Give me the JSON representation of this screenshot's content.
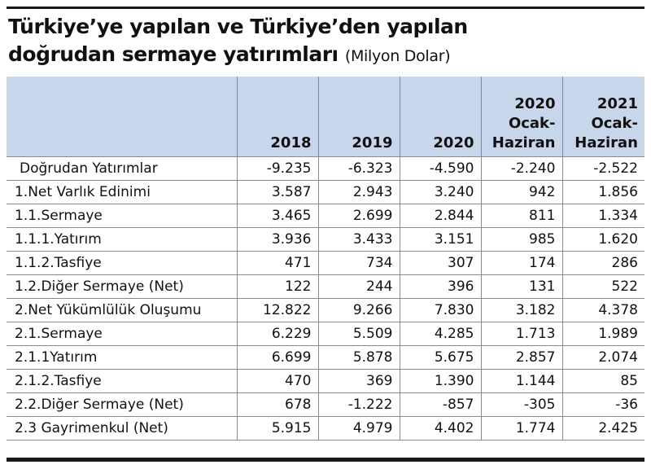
{
  "title": {
    "line1": "Türkiye’ye yapılan ve Türkiye’den yapılan",
    "line2": "doğrudan sermaye yatırımları",
    "unit": "(Milyon Dolar)"
  },
  "table": {
    "headers": [
      {
        "l1": "",
        "l2": "",
        "l3": ""
      },
      {
        "l1": "",
        "l2": "",
        "l3": "2018"
      },
      {
        "l1": "",
        "l2": "",
        "l3": "2019"
      },
      {
        "l1": "",
        "l2": "",
        "l3": "2020"
      },
      {
        "l1": "2020",
        "l2": "Ocak-",
        "l3": "Haziran"
      },
      {
        "l1": "2021",
        "l2": "Ocak-",
        "l3": "Haziran"
      }
    ],
    "rows": [
      [
        "Doğrudan Yatırımlar",
        "-9.235",
        "-6.323",
        "-4.590",
        "-2.240",
        "-2.522"
      ],
      [
        "1.Net Varlık Edinimi",
        "3.587",
        "2.943",
        "3.240",
        "942",
        "1.856"
      ],
      [
        "1.1.Sermaye",
        "3.465",
        "2.699",
        "2.844",
        "811",
        "1.334"
      ],
      [
        "1.1.1.Yatırım",
        "3.936",
        "3.433",
        "3.151",
        "985",
        "1.620"
      ],
      [
        "1.1.2.Tasfiye",
        "471",
        "734",
        "307",
        "174",
        "286"
      ],
      [
        "1.2.Diğer Sermaye (Net)",
        "122",
        "244",
        "396",
        "131",
        "522"
      ],
      [
        "2.Net Yükümlülük Oluşumu",
        "12.822",
        "9.266",
        "7.830",
        "3.182",
        "4.378"
      ],
      [
        "2.1.Sermaye",
        "6.229",
        "5.509",
        "4.285",
        "1.713",
        "1.989"
      ],
      [
        "2.1.1Yatırım",
        "6.699",
        "5.878",
        "5.675",
        "2.857",
        "2.074"
      ],
      [
        "2.1.2.Tasfiye",
        "470",
        "369",
        "1.390",
        "1.144",
        "85"
      ],
      [
        "2.2.Diğer Sermaye (Net)",
        "678",
        "-1.222",
        "-857",
        "-305",
        "-36"
      ],
      [
        "2.3 Gayrimenkul (Net)",
        "5.915",
        "4.979",
        "4.402",
        "1.774",
        "2.425"
      ]
    ]
  },
  "colors": {
    "header_bg": "#c8d6ec",
    "rule": "#1a1a1a",
    "grid": "#8a8a8a"
  }
}
